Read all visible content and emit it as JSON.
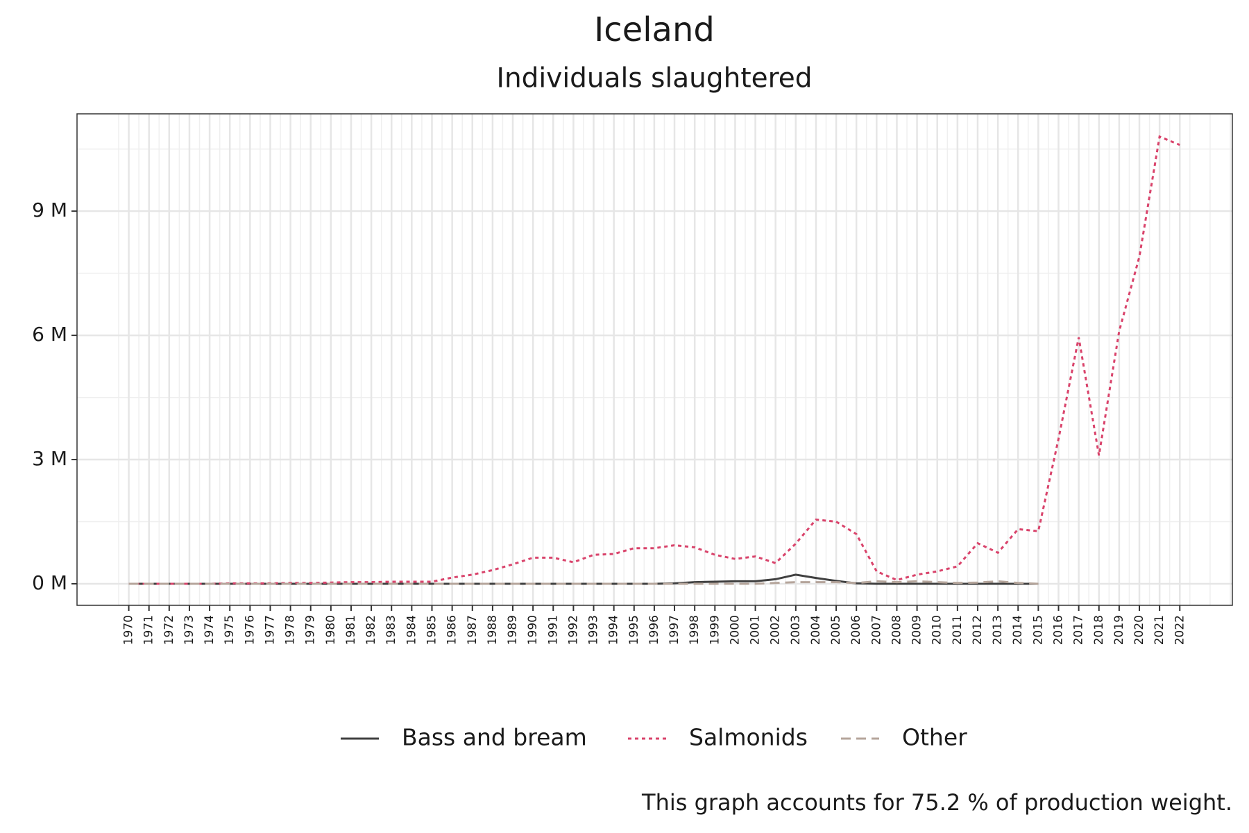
{
  "chart_data": {
    "type": "line",
    "title": "Iceland",
    "subtitle": "Individuals slaughtered",
    "caption": "This graph accounts for 75.2 % of production weight.",
    "x": [
      1970,
      1971,
      1972,
      1973,
      1974,
      1975,
      1976,
      1977,
      1978,
      1979,
      1980,
      1981,
      1982,
      1983,
      1984,
      1985,
      1986,
      1987,
      1988,
      1989,
      1990,
      1991,
      1992,
      1993,
      1994,
      1995,
      1996,
      1997,
      1998,
      1999,
      2000,
      2001,
      2002,
      2003,
      2004,
      2005,
      2006,
      2007,
      2008,
      2009,
      2010,
      2011,
      2012,
      2013,
      2014,
      2015,
      2016,
      2017,
      2018,
      2019,
      2020,
      2021,
      2022
    ],
    "series": [
      {
        "name": "Bass and bream",
        "color": "#404040",
        "linestyle": "solid",
        "values": [
          0,
          0,
          0,
          0,
          0,
          0,
          0,
          0,
          0,
          0,
          0,
          0,
          0,
          0,
          0,
          0,
          0,
          0,
          0,
          0,
          0,
          0,
          0,
          0,
          0,
          0,
          0,
          0.01,
          0.04,
          0.05,
          0.06,
          0.06,
          0.11,
          0.22,
          0.14,
          0.07,
          0.01,
          0,
          0,
          0,
          0,
          0,
          0,
          0,
          0,
          0,
          null,
          null,
          null,
          null,
          null,
          null,
          null
        ]
      },
      {
        "name": "Salmonids",
        "color": "#d9436b",
        "linestyle": "dotted",
        "values": [
          0,
          0,
          0,
          0,
          0,
          0.01,
          0.01,
          0.01,
          0.02,
          0.02,
          0.03,
          0.04,
          0.04,
          0.05,
          0.05,
          0.05,
          0.15,
          0.22,
          0.33,
          0.47,
          0.63,
          0.63,
          0.52,
          0.7,
          0.72,
          0.86,
          0.86,
          0.93,
          0.88,
          0.7,
          0.6,
          0.66,
          0.5,
          0.97,
          1.55,
          1.5,
          1.2,
          0.3,
          0.09,
          0.22,
          0.3,
          0.42,
          0.98,
          0.75,
          1.32,
          1.27,
          3.5,
          5.95,
          3.1,
          6.1,
          7.9,
          10.8,
          10.6
        ]
      },
      {
        "name": "Other",
        "color": "#b5a59b",
        "linestyle": "dashed",
        "values": [
          0,
          0,
          0,
          0,
          0,
          0,
          0,
          0,
          0,
          0,
          0,
          0,
          0,
          0,
          0,
          0,
          0,
          0,
          0,
          0,
          0,
          0,
          0,
          0,
          0,
          0,
          0,
          0,
          0,
          0,
          0,
          0,
          0.02,
          0.04,
          0.04,
          0.04,
          0.02,
          0.06,
          0.04,
          0.06,
          0.04,
          0.02,
          0.03,
          0.06,
          0.02,
          0,
          null,
          null,
          null,
          null,
          null,
          null,
          null
        ]
      }
    ],
    "xlim": [
      1967.44,
      2024.6
    ],
    "ylim": [
      -0.52,
      11.35
    ],
    "yticks": [
      {
        "value": 0,
        "label": "0 M"
      },
      {
        "value": 3,
        "label": "3 M"
      },
      {
        "value": 6,
        "label": "6 M"
      },
      {
        "value": 9,
        "label": "9 M"
      }
    ],
    "grid": true,
    "legend": "bottom"
  }
}
